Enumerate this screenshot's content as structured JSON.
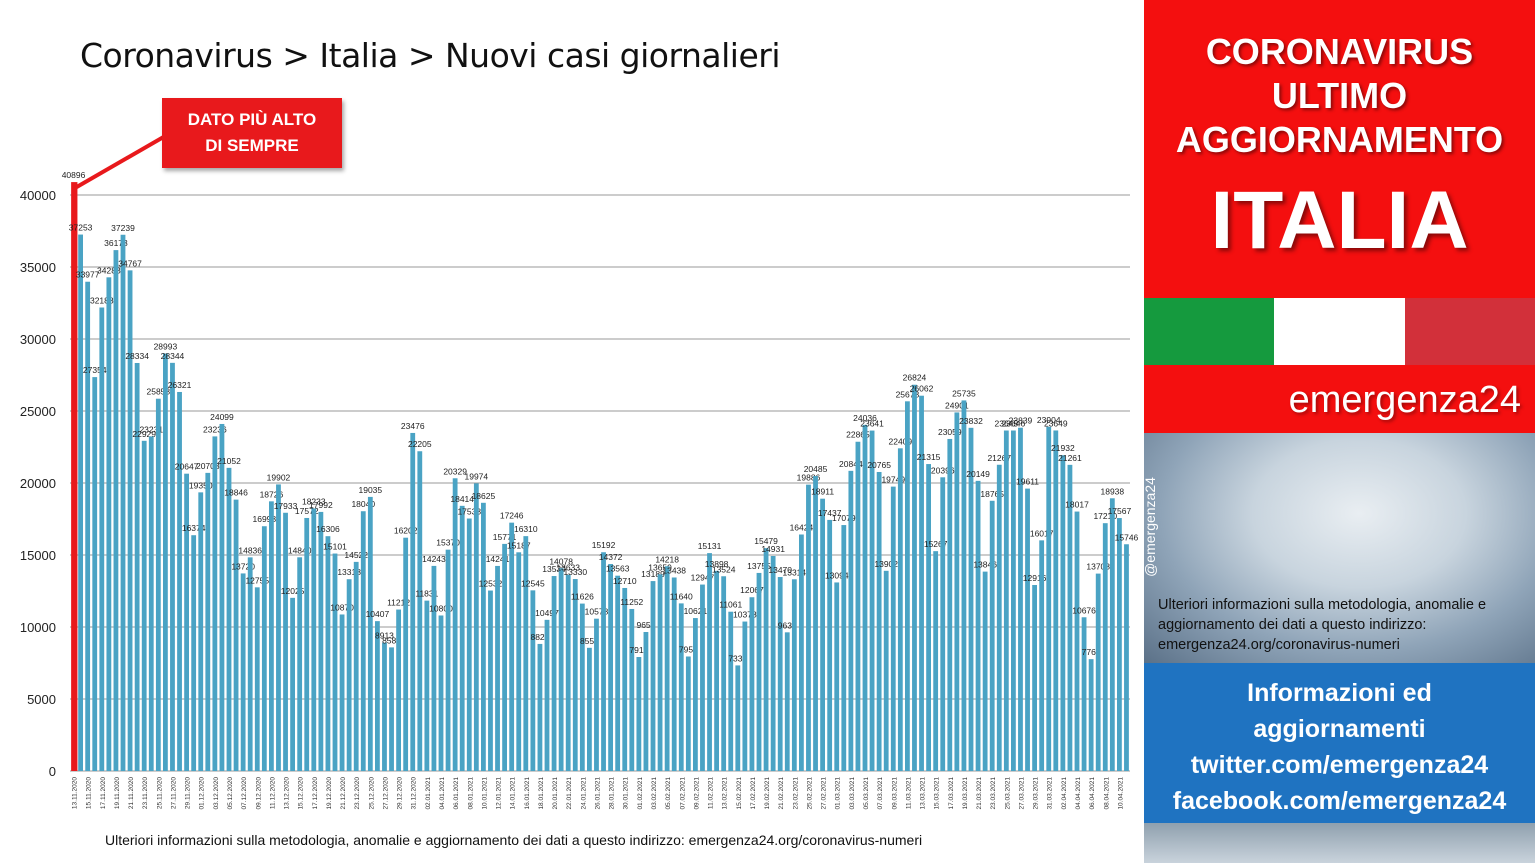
{
  "chart_title": "Coronavirus > Italia > Nuovi casi giornalieri",
  "callout": {
    "line1": "DATO PIÙ ALTO",
    "line2": "DI SEMPRE"
  },
  "footer_note": "Ulteriori informazioni sulla metodologia, anomalie e aggiornamento dei dati a questo indirizzo: emergenza24.org/coronavirus-numeri",
  "panel": {
    "header_line1": "CORONAVIRUS",
    "header_line2": "ULTIMO",
    "header_line3": "AGGIORNAMENTO",
    "country": "ITALIA",
    "brand": "emergenza24",
    "handle": "@emergenza24",
    "photo_note": "Ulteriori informazioni sulla metodologia, anomalie e aggiornamento dei dati a questo indirizzo: emergenza24.org/coronavirus-numeri",
    "info_line1": "Informazioni ed",
    "info_line2": "aggiornamenti",
    "info_line3": "twitter.com/emergenza24",
    "info_line4": "facebook.com/emergenza24",
    "flag_colors": [
      "#159a3e",
      "#ffffff",
      "#d2303a"
    ]
  },
  "colors": {
    "bar": "#4aa3c4",
    "highlight": "#e8191c",
    "grid": "#9a9a9a"
  },
  "chart_data": {
    "type": "bar",
    "ylim": [
      0,
      40000
    ],
    "yticks": [
      0,
      5000,
      10000,
      15000,
      20000,
      25000,
      30000,
      35000,
      40000
    ],
    "grid": true,
    "start_date": "2020-11-13",
    "highlight_index": 0,
    "values": [
      40896,
      37253,
      33977,
      27354,
      32188,
      34283,
      36173,
      37239,
      34767,
      28334,
      22929,
      23231,
      25853,
      28993,
      28344,
      26321,
      20647,
      16374,
      19350,
      20703,
      23236,
      24099,
      21052,
      18846,
      13720,
      14836,
      12755,
      16998,
      18726,
      19902,
      17933,
      12025,
      14840,
      17572,
      18233,
      17992,
      16306,
      15101,
      10870,
      13318,
      14522,
      18040,
      19035,
      10407,
      8913,
      8585,
      11212,
      16202,
      23476,
      22205,
      11831,
      14243,
      10800,
      15370,
      20329,
      18414,
      17533,
      19974,
      18625,
      12532,
      14241,
      15771,
      17246,
      15187,
      16310,
      12545,
      8824,
      10497,
      13539,
      14078,
      13633,
      13330,
      11626,
      8555,
      10578,
      15192,
      14372,
      13563,
      12710,
      11252,
      7916,
      9653,
      13189,
      13659,
      14218,
      13438,
      11640,
      7952,
      10621,
      12947,
      15131,
      13898,
      13524,
      11061,
      7333,
      10378,
      12067,
      13755,
      15479,
      14931,
      13470,
      9630,
      13314,
      16424,
      19886,
      20485,
      18911,
      17437,
      13094,
      17079,
      20844,
      22865,
      24036,
      23641,
      20765,
      13902,
      19749,
      22409,
      25673,
      26824,
      26062,
      21315,
      15267,
      20396,
      23059,
      24901,
      25735,
      23832,
      20149,
      13846,
      18765,
      21267,
      23645,
      23646,
      23839,
      19611,
      12916,
      16017,
      23904,
      23649,
      21932,
      21261,
      18017,
      10676,
      7767,
      13708,
      17210,
      18938,
      17567,
      15746
    ]
  }
}
